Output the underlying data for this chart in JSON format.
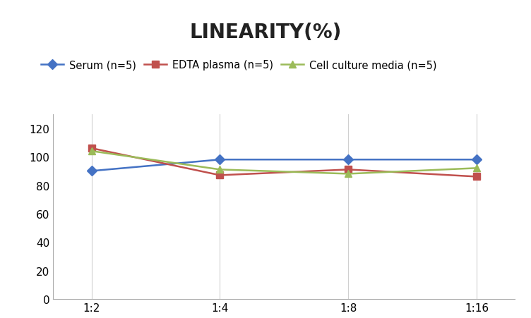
{
  "title": "LINEARITY(%)",
  "x_labels": [
    "1:2",
    "1:4",
    "1:8",
    "1:16"
  ],
  "x_positions": [
    0,
    1,
    2,
    3
  ],
  "series": [
    {
      "label": "Serum (n=5)",
      "values": [
        90,
        98,
        98,
        98
      ],
      "color": "#4472C4",
      "marker": "D",
      "linewidth": 1.8
    },
    {
      "label": "EDTA plasma (n=5)",
      "values": [
        106,
        87,
        91,
        86
      ],
      "color": "#C0504D",
      "marker": "s",
      "linewidth": 1.8
    },
    {
      "label": "Cell culture media (n=5)",
      "values": [
        104,
        91,
        88,
        92
      ],
      "color": "#9BBB59",
      "marker": "^",
      "linewidth": 1.8
    }
  ],
  "ylim": [
    0,
    130
  ],
  "yticks": [
    0,
    20,
    40,
    60,
    80,
    100,
    120
  ],
  "grid_color": "#D0D0D0",
  "background_color": "#FFFFFF",
  "title_fontsize": 20,
  "title_fontweight": "bold",
  "legend_fontsize": 10.5,
  "tick_fontsize": 11
}
